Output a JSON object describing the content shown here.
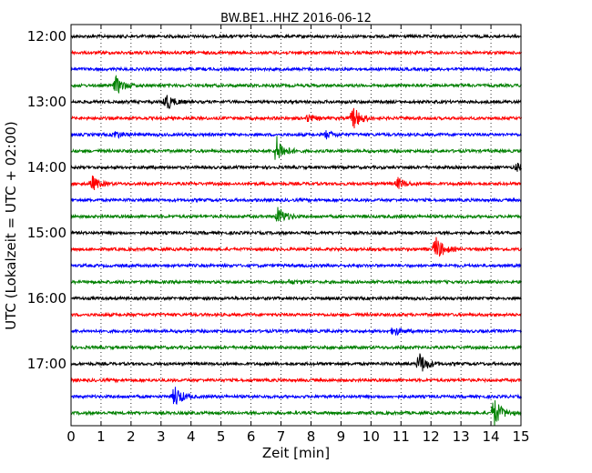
{
  "chart_data": {
    "type": "line",
    "title": "BW.BE1..HHZ 2016-06-12",
    "xlabel": "Zeit  [min]",
    "ylabel": "UTC (Lokalzeit = UTC + 02:00)",
    "xlim": [
      0,
      15
    ],
    "x_ticks": [
      "0",
      "1",
      "2",
      "3",
      "4",
      "5",
      "6",
      "7",
      "8",
      "9",
      "10",
      "11",
      "12",
      "13",
      "14",
      "15"
    ],
    "y_tick_labels": [
      "12:00",
      "13:00",
      "14:00",
      "15:00",
      "16:00",
      "17:00"
    ],
    "grid": "vertical dotted",
    "trace_interval_minutes": 15,
    "trace_start": "12:00",
    "traces": [
      {
        "start": "12:00",
        "color": "#000000",
        "events": []
      },
      {
        "start": "12:15",
        "color": "#ff0000",
        "events": []
      },
      {
        "start": "12:30",
        "color": "#0000ff",
        "events": []
      },
      {
        "start": "12:45",
        "color": "#008000",
        "events": [
          {
            "t": 1.5,
            "amp": 10
          }
        ]
      },
      {
        "start": "13:00",
        "color": "#000000",
        "events": [
          {
            "t": 3.15,
            "amp": 10
          }
        ]
      },
      {
        "start": "13:15",
        "color": "#ff0000",
        "events": [
          {
            "t": 7.9,
            "amp": 4
          },
          {
            "t": 9.4,
            "amp": 13
          }
        ]
      },
      {
        "start": "13:30",
        "color": "#0000ff",
        "events": [
          {
            "t": 1.45,
            "amp": 4
          },
          {
            "t": 8.5,
            "amp": 4
          }
        ]
      },
      {
        "start": "13:45",
        "color": "#008000",
        "events": [
          {
            "t": 6.85,
            "amp": 16
          }
        ]
      },
      {
        "start": "14:00",
        "color": "#000000",
        "events": [
          {
            "t": 14.85,
            "amp": 4
          }
        ]
      },
      {
        "start": "14:15",
        "color": "#ff0000",
        "events": [
          {
            "t": 0.7,
            "amp": 8
          },
          {
            "t": 10.9,
            "amp": 6
          }
        ]
      },
      {
        "start": "14:30",
        "color": "#0000ff",
        "events": []
      },
      {
        "start": "14:45",
        "color": "#008000",
        "events": [
          {
            "t": 6.9,
            "amp": 10
          }
        ]
      },
      {
        "start": "15:00",
        "color": "#000000",
        "events": []
      },
      {
        "start": "15:15",
        "color": "#ff0000",
        "events": [
          {
            "t": 12.15,
            "amp": 14
          }
        ]
      },
      {
        "start": "15:30",
        "color": "#0000ff",
        "events": []
      },
      {
        "start": "15:45",
        "color": "#008000",
        "events": [
          {
            "t": 7.3,
            "amp": 2
          }
        ]
      },
      {
        "start": "16:00",
        "color": "#000000",
        "events": []
      },
      {
        "start": "16:15",
        "color": "#ff0000",
        "events": []
      },
      {
        "start": "16:30",
        "color": "#0000ff",
        "events": [
          {
            "t": 10.75,
            "amp": 5
          }
        ]
      },
      {
        "start": "16:45",
        "color": "#008000",
        "events": []
      },
      {
        "start": "17:00",
        "color": "#000000",
        "events": [
          {
            "t": 11.6,
            "amp": 13
          }
        ]
      },
      {
        "start": "17:15",
        "color": "#ff0000",
        "events": []
      },
      {
        "start": "17:30",
        "color": "#0000ff",
        "events": [
          {
            "t": 3.45,
            "amp": 12
          }
        ]
      },
      {
        "start": "17:45",
        "color": "#008000",
        "events": [
          {
            "t": 14.1,
            "amp": 16
          }
        ]
      }
    ]
  }
}
